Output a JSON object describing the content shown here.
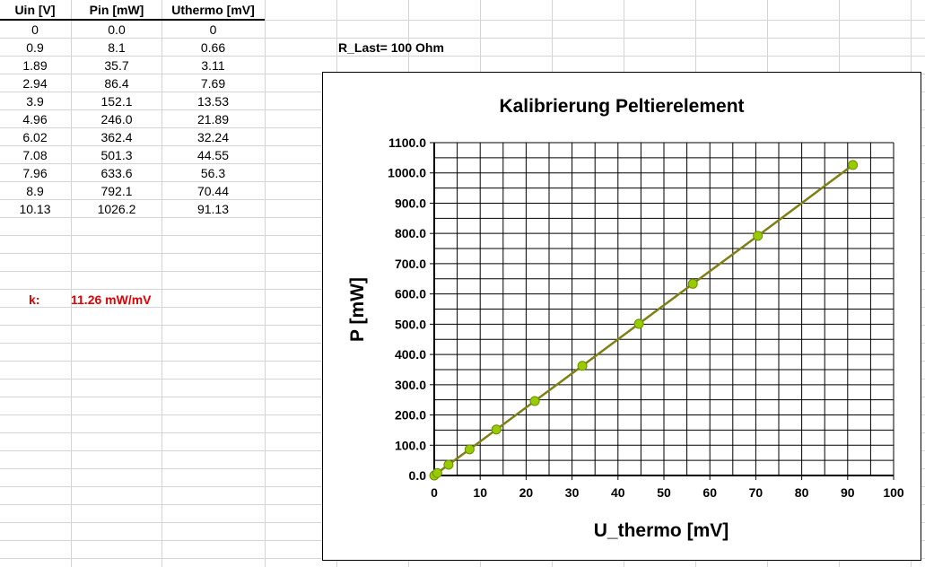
{
  "table": {
    "headers": [
      "Uin [V]",
      "Pin [mW]",
      "Uthermo [mV]"
    ],
    "rows": [
      [
        "0",
        "0.0",
        "0"
      ],
      [
        "0.9",
        "8.1",
        "0.66"
      ],
      [
        "1.89",
        "35.7",
        "3.11"
      ],
      [
        "2.94",
        "86.4",
        "7.69"
      ],
      [
        "3.9",
        "152.1",
        "13.53"
      ],
      [
        "4.96",
        "246.0",
        "21.89"
      ],
      [
        "6.02",
        "362.4",
        "32.24"
      ],
      [
        "7.08",
        "501.3",
        "44.55"
      ],
      [
        "7.96",
        "633.6",
        "56.3"
      ],
      [
        "8.9",
        "792.1",
        "70.44"
      ],
      [
        "10.13",
        "1026.2",
        "91.13"
      ]
    ]
  },
  "note": "R_Last= 100 Ohm",
  "k": {
    "label": "k:",
    "value": "11.26 mW/mV"
  },
  "colors": {
    "line": "#7f7f14",
    "marker_fill": "#99cc00",
    "marker_stroke": "#6b8e00",
    "k_text": "#e00000"
  },
  "chart_data": {
    "type": "scatter",
    "title": "Kalibrierung Peltierelement",
    "xlabel": "U_thermo [mV]",
    "ylabel": "P [mW]",
    "xlim": [
      0,
      100
    ],
    "ylim": [
      0,
      1100
    ],
    "x_ticks": [
      "0",
      "10",
      "20",
      "30",
      "40",
      "50",
      "60",
      "70",
      "80",
      "90",
      "100"
    ],
    "y_ticks": [
      "0.0",
      "100.0",
      "200.0",
      "300.0",
      "400.0",
      "500.0",
      "600.0",
      "700.0",
      "800.0",
      "900.0",
      "1000.0",
      "1100.0"
    ],
    "grid": true,
    "series": [
      {
        "x": [
          0,
          0.66,
          3.11,
          7.69,
          13.53,
          21.89,
          32.24,
          44.55,
          56.3,
          70.44,
          91.13
        ],
        "y": [
          0,
          8.1,
          35.7,
          86.4,
          152.1,
          246.0,
          362.4,
          501.3,
          633.6,
          792.1,
          1026.2
        ]
      }
    ]
  }
}
